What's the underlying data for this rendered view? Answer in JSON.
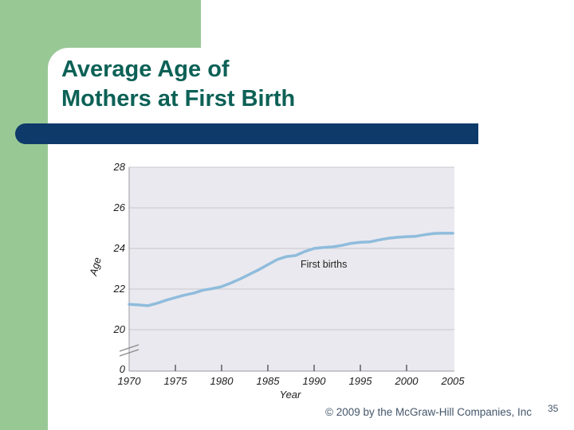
{
  "slide": {
    "title": {
      "line1": "Average Age of",
      "line2": "Mothers at First Birth"
    },
    "footer": {
      "copyright": "© 2009 by the McGraw-Hill Companies, Inc",
      "slide_number": "35"
    }
  },
  "colors": {
    "accent_green": "#98C995",
    "bar_navy": "#0E3A6A",
    "title_teal": "#0C6156",
    "plot_background": "#EAE9EF",
    "gridline": "#C9C8CF",
    "axis": "#9A9AA0",
    "tick_mark": "#3C3C3C",
    "series_line": "#8FBCDC",
    "footer_text": "#44566A"
  },
  "chart_data": {
    "type": "line",
    "title": "",
    "xlabel": "Year",
    "ylabel": "Age",
    "series_label": "First births",
    "x_ticks": [
      "1970",
      "1975",
      "1980",
      "1985",
      "1990",
      "1995",
      "2000",
      "2005"
    ],
    "y_ticks": [
      "28",
      "26",
      "24",
      "22",
      "20"
    ],
    "y_origin_tick": "0",
    "axis_break": true,
    "ylim_display": [
      20,
      28
    ],
    "xlim": [
      1970,
      2005
    ],
    "grid": "horizontal",
    "x": [
      1970,
      1971,
      1972,
      1973,
      1974,
      1975,
      1976,
      1977,
      1978,
      1979,
      1980,
      1981,
      1982,
      1983,
      1984,
      1985,
      1986,
      1987,
      1988,
      1989,
      1990,
      1991,
      1992,
      1993,
      1994,
      1995,
      1996,
      1997,
      1998,
      1999,
      2000,
      2001,
      2002,
      2003,
      2004,
      2005
    ],
    "values": [
      21.25,
      21.22,
      21.18,
      21.3,
      21.45,
      21.58,
      21.7,
      21.8,
      21.95,
      22.02,
      22.12,
      22.3,
      22.5,
      22.72,
      22.95,
      23.2,
      23.45,
      23.6,
      23.65,
      23.85,
      24.0,
      24.05,
      24.08,
      24.15,
      24.25,
      24.3,
      24.32,
      24.42,
      24.5,
      24.55,
      24.58,
      24.6,
      24.68,
      24.74,
      24.75,
      24.75
    ]
  }
}
